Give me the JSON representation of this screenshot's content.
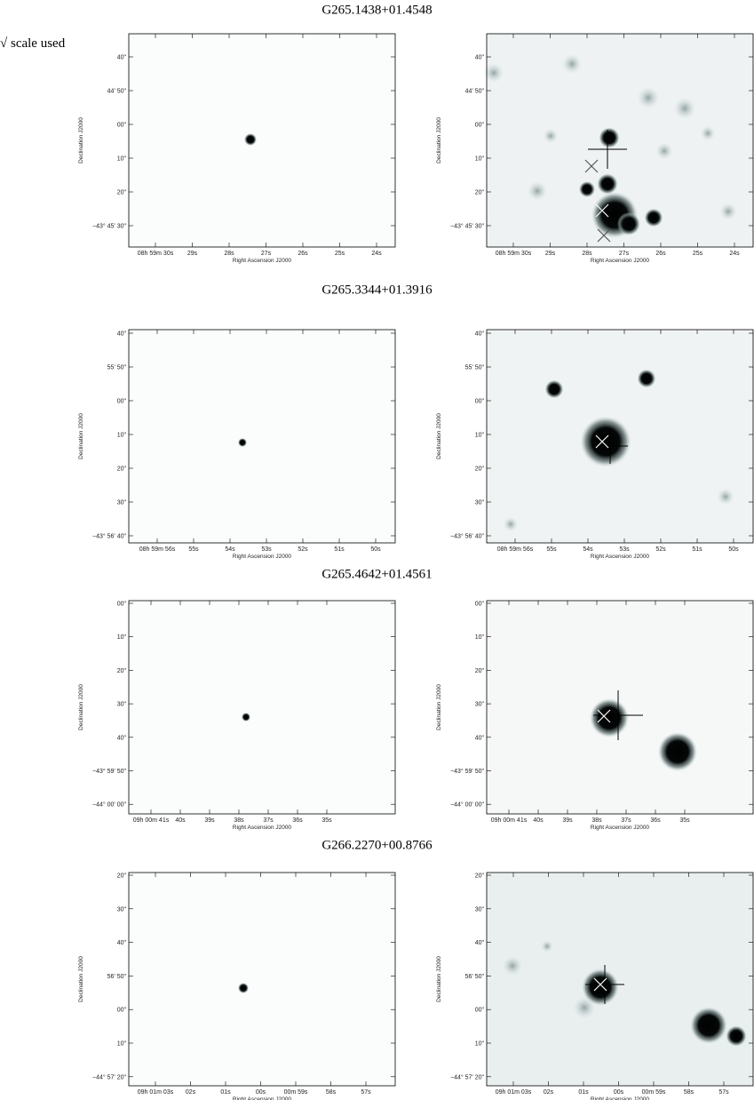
{
  "note": "√ scale used",
  "sources": [
    {
      "title": "G265.1438+01.4548",
      "x_axis_label": "Right Ascension J2000",
      "y_axis_label": "Declination J2000",
      "yticks": [
        "40\"",
        "44' 50\"",
        "00\"",
        "10\"",
        "20\"",
        "−43° 45' 30\""
      ],
      "xticks": [
        "08h 59m 30s",
        "29s",
        "28s",
        "27s",
        "26s",
        "25s",
        "24s"
      ]
    },
    {
      "title": "G265.3344+01.3916",
      "x_axis_label": "Right Ascension J2000",
      "y_axis_label": "Declination J2000",
      "yticks": [
        "40\"",
        "55' 50\"",
        "00\"",
        "10\"",
        "20\"",
        "30\"",
        "−43° 56' 40\""
      ],
      "xticks": [
        "08h 59m 56s",
        "55s",
        "54s",
        "53s",
        "52s",
        "51s",
        "50s"
      ]
    },
    {
      "title": "G265.4642+01.4561",
      "x_axis_label": "Right Ascension J2000",
      "y_axis_label": "Declination J2000",
      "yticks": [
        "00\"",
        "10\"",
        "20\"",
        "30\"",
        "40\"",
        "−43° 59' 50\"",
        "−44° 00' 00\""
      ],
      "xticks": [
        "09h 00m 41s",
        "40s",
        "39s",
        "38s",
        "37s",
        "36s",
        "35s"
      ]
    },
    {
      "title": "G266.2270+00.8766",
      "x_axis_label": "Right Ascension J2000",
      "y_axis_label": "Declination J2000",
      "yticks": [
        "20\"",
        "30\"",
        "40\"",
        "56' 50\"",
        "00\"",
        "10\"",
        "−44° 57' 20\""
      ],
      "xticks": [
        "09h 01m 03s",
        "02s",
        "01s",
        "00s",
        "00m 59s",
        "58s",
        "57s"
      ]
    }
  ]
}
